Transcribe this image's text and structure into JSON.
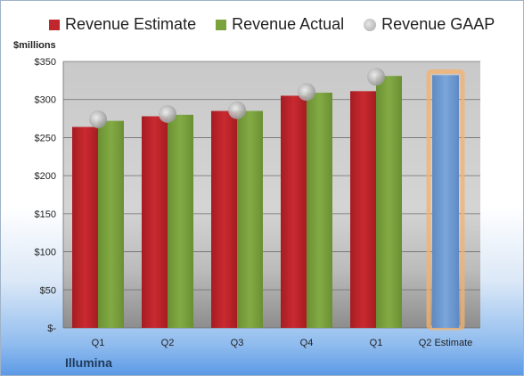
{
  "legend": {
    "estimate_label": "Revenue Estimate",
    "actual_label": "Revenue Actual",
    "gaap_label": "Revenue GAAP"
  },
  "unit_label": "$millions",
  "company": "Illumina",
  "colors": {
    "estimate": "#c0262b",
    "actual": "#7aa23d",
    "gaap": "#b3b3b3",
    "forecast": "#6f9ad2",
    "forecast_glow": "#f5b26b"
  },
  "chart_data": {
    "type": "bar",
    "categories": [
      "Q1",
      "Q2",
      "Q3",
      "Q4",
      "Q1",
      "Q2 Estimate"
    ],
    "series": [
      {
        "name": "Revenue Estimate",
        "values": [
          264,
          278,
          285,
          305,
          311,
          null
        ]
      },
      {
        "name": "Revenue Actual",
        "values": [
          272,
          280,
          285,
          309,
          331,
          null
        ]
      },
      {
        "name": "Revenue GAAP",
        "values": [
          274,
          281,
          286,
          310,
          330,
          null
        ]
      }
    ],
    "forecast": {
      "category": "Q2 Estimate",
      "value": 332
    },
    "ylabel": "$millions",
    "ylim": [
      0,
      350
    ],
    "yticks": [
      0,
      50,
      100,
      150,
      200,
      250,
      300,
      350
    ],
    "ytick_labels": [
      "$-",
      "$50",
      "$100",
      "$150",
      "$200",
      "$250",
      "$300",
      "$350"
    ],
    "grid": true,
    "legend_position": "top"
  }
}
